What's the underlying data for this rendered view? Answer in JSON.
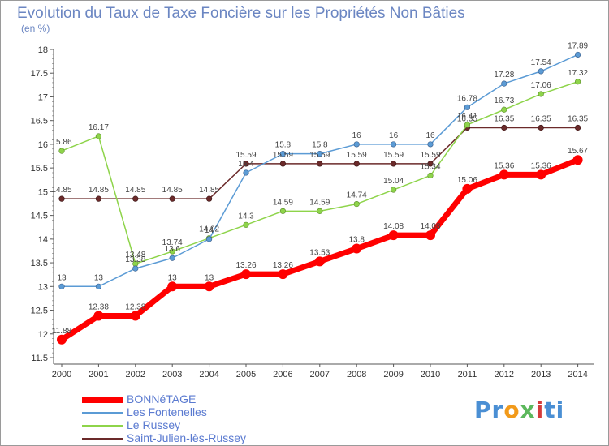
{
  "chart_data": {
    "type": "line",
    "title": "Evolution du Taux de Taxe Foncière sur les Propriétés Non Bâties",
    "subtitle": "(en %)",
    "x": [
      "2000",
      "2001",
      "2002",
      "2003",
      "2004",
      "2005",
      "2006",
      "2007",
      "2008",
      "2009",
      "2010",
      "2011",
      "2012",
      "2013",
      "2014"
    ],
    "ylim": [
      11.5,
      18
    ],
    "yticks": [
      "11.5",
      "12",
      "12.5",
      "13",
      "13.5",
      "14",
      "14.5",
      "15",
      "15.5",
      "16",
      "16.5",
      "17",
      "17.5",
      "18"
    ],
    "grid": false,
    "legend_position": "bottom-left",
    "series": [
      {
        "name": "BONNéTAGE",
        "color": "#ff0000",
        "values": [
          11.88,
          12.38,
          12.38,
          13,
          13,
          13.26,
          13.26,
          13.53,
          13.8,
          14.08,
          14.08,
          15.06,
          15.36,
          15.36,
          15.67
        ],
        "labels": [
          "11.88",
          "12.38",
          "12.38",
          "13",
          "13",
          "13.26",
          "13.26",
          "13.53",
          "13.8",
          "14.08",
          "14.08",
          "15.06",
          "15.36",
          "15.36",
          "15.67"
        ]
      },
      {
        "name": "Les Fontenelles",
        "color": "#5b9bd5",
        "values": [
          13,
          13,
          13.38,
          13.6,
          14,
          15.4,
          15.8,
          15.8,
          16,
          16,
          16,
          16.78,
          17.28,
          17.54,
          17.89
        ],
        "labels": [
          "13",
          "13",
          "13.38",
          "13.6",
          "14",
          "15.4",
          "15.8",
          "15.8",
          "16",
          "16",
          "16",
          "16.78",
          "17.28",
          "17.54",
          "17.89"
        ]
      },
      {
        "name": "Le Russey",
        "color": "#8ed44a",
        "values": [
          15.86,
          16.17,
          13.48,
          13.74,
          14.02,
          14.3,
          14.59,
          14.59,
          14.74,
          15.04,
          15.34,
          16.41,
          16.73,
          17.06,
          17.32
        ],
        "labels": [
          "15.86",
          "16.17",
          "13.48",
          "13.74",
          "14.02",
          "14.3",
          "14.59",
          "14.59",
          "14.74",
          "15.04",
          "15.34",
          "16.41",
          "16.73",
          "17.06",
          "17.32"
        ]
      },
      {
        "name": "Saint-Julien-lès-Russey",
        "color": "#6b2a2a",
        "values": [
          14.85,
          14.85,
          14.85,
          14.85,
          14.85,
          15.59,
          15.59,
          15.59,
          15.59,
          15.59,
          15.59,
          16.35,
          16.35,
          16.35,
          16.35
        ],
        "labels": [
          "14.85",
          "14.85",
          "14.85",
          "14.85",
          "14.85",
          "15.59",
          "15.59",
          "15.59",
          "15.59",
          "15.59",
          "15.59",
          "16.35",
          "16.35",
          "16.35",
          "16.35"
        ]
      }
    ]
  },
  "logo": {
    "text_parts": [
      "Pr",
      "o",
      "x",
      "i",
      "ti"
    ],
    "colors": [
      "#4a8fd4",
      "#f29a1a",
      "#5cb85c",
      "#d43b3b",
      "#4a8fd4"
    ]
  }
}
